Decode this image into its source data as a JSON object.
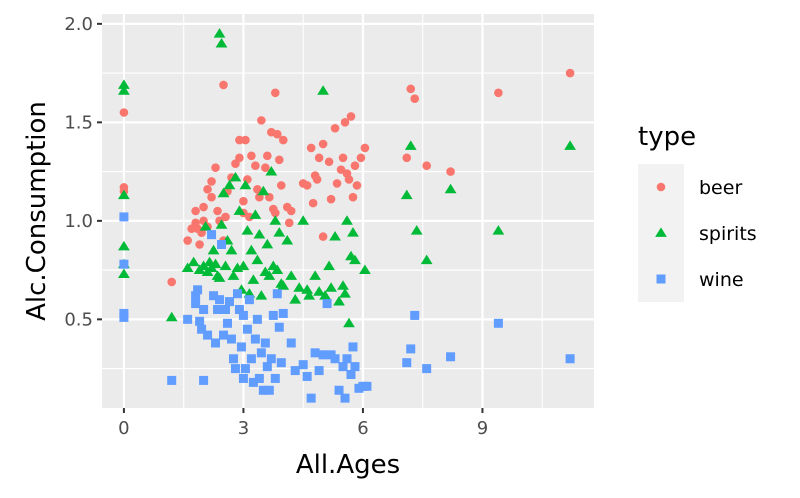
{
  "chart_data": {
    "type": "scatter",
    "xlabel": "All.Ages",
    "ylabel": "Alc.Consumption",
    "xlim": [
      -0.55,
      11.8
    ],
    "ylim": [
      0.05,
      2.05
    ],
    "x_ticks": [
      0,
      3,
      6,
      9
    ],
    "x_tick_labels": [
      "0",
      "3",
      "6",
      "9"
    ],
    "y_ticks": [
      0.5,
      1.0,
      1.5,
      2.0
    ],
    "y_tick_labels": [
      "0.5",
      "1.0",
      "1.5",
      "2.0"
    ],
    "grid": true,
    "legend": {
      "title": "type",
      "position": "right"
    },
    "series": [
      {
        "name": "beer",
        "color": "#F8766D",
        "shape": "circle",
        "points": [
          [
            0,
            1.55
          ],
          [
            0,
            1.17
          ],
          [
            0,
            1.15
          ],
          [
            0,
            1.02
          ],
          [
            1.2,
            0.69
          ],
          [
            1.6,
            0.9
          ],
          [
            1.7,
            0.96
          ],
          [
            1.8,
            0.99
          ],
          [
            1.8,
            1.05
          ],
          [
            1.85,
            0.96
          ],
          [
            1.9,
            0.88
          ],
          [
            1.95,
            0.94
          ],
          [
            2.0,
            1.0
          ],
          [
            2.0,
            1.07
          ],
          [
            2.1,
            0.97
          ],
          [
            2.1,
            1.16
          ],
          [
            2.2,
            1.2
          ],
          [
            2.2,
            1.12
          ],
          [
            2.3,
            1.27
          ],
          [
            2.35,
            1.05
          ],
          [
            2.4,
            1.0
          ],
          [
            2.5,
            1.69
          ],
          [
            2.5,
            0.9
          ],
          [
            2.55,
            1.02
          ],
          [
            2.6,
            1.15
          ],
          [
            2.7,
            1.22
          ],
          [
            2.8,
            1.29
          ],
          [
            2.9,
            1.41
          ],
          [
            2.9,
            1.32
          ],
          [
            3.0,
            1.1
          ],
          [
            3.0,
            1.04
          ],
          [
            3.05,
            1.41
          ],
          [
            3.1,
            1.21
          ],
          [
            3.15,
            1.02
          ],
          [
            3.2,
            1.33
          ],
          [
            3.3,
            1.28
          ],
          [
            3.35,
            1.16
          ],
          [
            3.4,
            1.12
          ],
          [
            3.45,
            1.51
          ],
          [
            3.55,
            1.27
          ],
          [
            3.6,
            1.33
          ],
          [
            3.65,
            1.12
          ],
          [
            3.7,
            1.45
          ],
          [
            3.75,
            1.06
          ],
          [
            3.8,
            1.65
          ],
          [
            3.8,
            1.04
          ],
          [
            3.85,
            1.44
          ],
          [
            3.9,
            1.31
          ],
          [
            3.95,
            1.18
          ],
          [
            4.0,
            1.41
          ],
          [
            4.1,
            1.07
          ],
          [
            4.15,
            0.99
          ],
          [
            4.2,
            1.05
          ],
          [
            4.5,
            1.19
          ],
          [
            4.6,
            1.18
          ],
          [
            4.7,
            1.37
          ],
          [
            4.75,
            1.09
          ],
          [
            4.8,
            1.23
          ],
          [
            4.85,
            1.21
          ],
          [
            4.9,
            1.32
          ],
          [
            5.0,
            1.39
          ],
          [
            5.0,
            0.92
          ],
          [
            5.15,
            1.3
          ],
          [
            5.2,
            1.11
          ],
          [
            5.3,
            1.47
          ],
          [
            5.35,
            1.19
          ],
          [
            5.45,
            1.26
          ],
          [
            5.5,
            1.32
          ],
          [
            5.55,
            1.5
          ],
          [
            5.6,
            1.24
          ],
          [
            5.65,
            1.21
          ],
          [
            5.7,
            1.53
          ],
          [
            5.75,
            1.12
          ],
          [
            5.8,
            1.28
          ],
          [
            5.85,
            1.18
          ],
          [
            5.95,
            1.32
          ],
          [
            6.05,
            1.37
          ],
          [
            7.1,
            1.32
          ],
          [
            7.2,
            1.67
          ],
          [
            7.3,
            1.62
          ],
          [
            7.6,
            1.28
          ],
          [
            8.2,
            1.25
          ],
          [
            9.4,
            1.65
          ],
          [
            11.2,
            1.75
          ]
        ]
      },
      {
        "name": "spirits",
        "color": "#00BA38",
        "shape": "triangle",
        "points": [
          [
            0,
            1.69
          ],
          [
            0,
            1.66
          ],
          [
            0,
            1.13
          ],
          [
            0,
            0.87
          ],
          [
            0,
            0.78
          ],
          [
            0,
            0.73
          ],
          [
            1.2,
            0.51
          ],
          [
            1.6,
            0.76
          ],
          [
            1.75,
            0.79
          ],
          [
            1.9,
            0.75
          ],
          [
            2.0,
            0.77
          ],
          [
            2.05,
            0.97
          ],
          [
            2.1,
            0.74
          ],
          [
            2.15,
            0.79
          ],
          [
            2.2,
            0.76
          ],
          [
            2.25,
            0.85
          ],
          [
            2.3,
            0.78
          ],
          [
            2.35,
            0.72
          ],
          [
            2.4,
            0.71
          ],
          [
            2.4,
            1.95
          ],
          [
            2.45,
            1.9
          ],
          [
            2.45,
            0.98
          ],
          [
            2.5,
            1.14
          ],
          [
            2.55,
            0.77
          ],
          [
            2.6,
            0.9
          ],
          [
            2.65,
            1.18
          ],
          [
            2.7,
            0.85
          ],
          [
            2.75,
            0.72
          ],
          [
            2.8,
            1.22
          ],
          [
            2.85,
            0.76
          ],
          [
            2.9,
            1.05
          ],
          [
            2.95,
            0.65
          ],
          [
            3.0,
            0.77
          ],
          [
            3.05,
            1.18
          ],
          [
            3.1,
            0.95
          ],
          [
            3.15,
            0.63
          ],
          [
            3.2,
            0.85
          ],
          [
            3.25,
            0.7
          ],
          [
            3.3,
            1.03
          ],
          [
            3.35,
            0.8
          ],
          [
            3.4,
            0.93
          ],
          [
            3.45,
            0.62
          ],
          [
            3.5,
            1.15
          ],
          [
            3.55,
            0.74
          ],
          [
            3.6,
            0.88
          ],
          [
            3.65,
            0.72
          ],
          [
            3.7,
            1.25
          ],
          [
            3.75,
            0.77
          ],
          [
            3.8,
            1.0
          ],
          [
            3.85,
            0.75
          ],
          [
            3.9,
            0.94
          ],
          [
            3.95,
            0.68
          ],
          [
            4.0,
            0.67
          ],
          [
            4.1,
            0.9
          ],
          [
            4.2,
            0.72
          ],
          [
            4.3,
            0.6
          ],
          [
            4.4,
            0.66
          ],
          [
            4.5,
            1.0
          ],
          [
            4.6,
            0.65
          ],
          [
            4.65,
            0.62
          ],
          [
            4.8,
            0.72
          ],
          [
            4.9,
            0.64
          ],
          [
            5.0,
            1.66
          ],
          [
            5.05,
            0.62
          ],
          [
            5.15,
            0.77
          ],
          [
            5.2,
            0.66
          ],
          [
            5.3,
            0.92
          ],
          [
            5.4,
            0.59
          ],
          [
            5.5,
            0.67
          ],
          [
            5.55,
            0.63
          ],
          [
            5.6,
            1.0
          ],
          [
            5.65,
            0.48
          ],
          [
            5.7,
            0.82
          ],
          [
            5.75,
            0.94
          ],
          [
            5.8,
            0.8
          ],
          [
            6.05,
            0.75
          ],
          [
            7.1,
            1.13
          ],
          [
            7.2,
            1.38
          ],
          [
            7.35,
            0.95
          ],
          [
            7.6,
            0.8
          ],
          [
            8.2,
            1.16
          ],
          [
            9.4,
            0.95
          ],
          [
            11.2,
            1.38
          ]
        ]
      },
      {
        "name": "wine",
        "color": "#619CFF",
        "shape": "square",
        "points": [
          [
            0,
            1.02
          ],
          [
            0,
            0.78
          ],
          [
            0,
            0.53
          ],
          [
            0,
            0.51
          ],
          [
            1.2,
            0.19
          ],
          [
            1.6,
            0.5
          ],
          [
            1.8,
            0.58
          ],
          [
            1.8,
            0.62
          ],
          [
            1.85,
            0.65
          ],
          [
            1.9,
            0.49
          ],
          [
            1.95,
            0.45
          ],
          [
            2.0,
            0.55
          ],
          [
            2.0,
            0.19
          ],
          [
            2.1,
            0.42
          ],
          [
            2.2,
            0.93
          ],
          [
            2.25,
            0.62
          ],
          [
            2.3,
            0.38
          ],
          [
            2.35,
            0.55
          ],
          [
            2.4,
            0.6
          ],
          [
            2.45,
            0.88
          ],
          [
            2.5,
            0.42
          ],
          [
            2.55,
            0.55
          ],
          [
            2.6,
            0.48
          ],
          [
            2.65,
            0.59
          ],
          [
            2.7,
            0.4
          ],
          [
            2.75,
            0.3
          ],
          [
            2.8,
            0.25
          ],
          [
            2.85,
            0.63
          ],
          [
            2.9,
            0.55
          ],
          [
            2.95,
            0.36
          ],
          [
            3.0,
            0.2
          ],
          [
            3.0,
            0.52
          ],
          [
            3.05,
            0.25
          ],
          [
            3.1,
            0.45
          ],
          [
            3.15,
            0.6
          ],
          [
            3.2,
            0.3
          ],
          [
            3.25,
            0.18
          ],
          [
            3.3,
            0.4
          ],
          [
            3.35,
            0.5
          ],
          [
            3.4,
            0.2
          ],
          [
            3.45,
            0.33
          ],
          [
            3.5,
            0.14
          ],
          [
            3.55,
            0.38
          ],
          [
            3.6,
            0.26
          ],
          [
            3.65,
            0.14
          ],
          [
            3.7,
            0.3
          ],
          [
            3.75,
            0.52
          ],
          [
            3.8,
            0.2
          ],
          [
            3.85,
            0.63
          ],
          [
            3.9,
            0.46
          ],
          [
            3.95,
            0.28
          ],
          [
            4.0,
            0.53
          ],
          [
            4.2,
            0.38
          ],
          [
            4.3,
            0.24
          ],
          [
            4.5,
            0.27
          ],
          [
            4.6,
            0.21
          ],
          [
            4.7,
            0.1
          ],
          [
            4.8,
            0.33
          ],
          [
            4.9,
            0.24
          ],
          [
            5.0,
            0.32
          ],
          [
            5.1,
            0.58
          ],
          [
            5.2,
            0.32
          ],
          [
            5.3,
            0.3
          ],
          [
            5.4,
            0.14
          ],
          [
            5.5,
            0.26
          ],
          [
            5.55,
            0.1
          ],
          [
            5.6,
            0.3
          ],
          [
            5.7,
            0.22
          ],
          [
            5.75,
            0.36
          ],
          [
            5.8,
            0.26
          ],
          [
            5.9,
            0.15
          ],
          [
            6.0,
            0.16
          ],
          [
            6.1,
            0.16
          ],
          [
            7.1,
            0.28
          ],
          [
            7.2,
            0.35
          ],
          [
            7.3,
            0.52
          ],
          [
            7.6,
            0.25
          ],
          [
            8.2,
            0.31
          ],
          [
            9.4,
            0.48
          ],
          [
            11.2,
            0.3
          ]
        ]
      }
    ]
  }
}
